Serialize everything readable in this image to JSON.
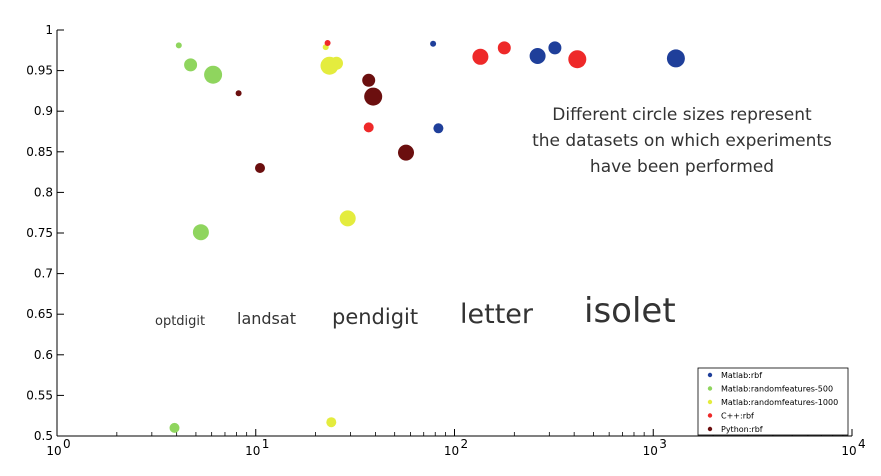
{
  "chart_data": {
    "type": "scatter",
    "xscale": "log",
    "xlim": [
      1,
      10000
    ],
    "ylim": [
      0.5,
      1.0
    ],
    "grid": false,
    "legend_position": "bottom-right",
    "x_ticks": [
      {
        "value": 1,
        "base": "10",
        "exp": "0"
      },
      {
        "value": 10,
        "base": "10",
        "exp": "1"
      },
      {
        "value": 100,
        "base": "10",
        "exp": "2"
      },
      {
        "value": 1000,
        "base": "10",
        "exp": "3"
      },
      {
        "value": 10000,
        "base": "10",
        "exp": "4"
      }
    ],
    "y_ticks": [
      {
        "value": 0.5,
        "label": "0.5"
      },
      {
        "value": 0.55,
        "label": "0.55"
      },
      {
        "value": 0.6,
        "label": "0.6"
      },
      {
        "value": 0.65,
        "label": "0.65"
      },
      {
        "value": 0.7,
        "label": "0.7"
      },
      {
        "value": 0.75,
        "label": "0.75"
      },
      {
        "value": 0.8,
        "label": "0.8"
      },
      {
        "value": 0.85,
        "label": "0.85"
      },
      {
        "value": 0.9,
        "label": "0.9"
      },
      {
        "value": 0.95,
        "label": "0.95"
      },
      {
        "value": 1.0,
        "label": "1"
      }
    ],
    "datasets": [
      "optdigit",
      "landsat",
      "pendigit",
      "letter",
      "isolet"
    ],
    "series": [
      {
        "name": "Matlab:rbf",
        "color": "#1f3f9a",
        "points": [
          {
            "x": 78,
            "y": 0.983,
            "dataset": "optdigit"
          },
          {
            "x": 83,
            "y": 0.879,
            "dataset": "landsat"
          },
          {
            "x": 320,
            "y": 0.978,
            "dataset": "pendigit"
          },
          {
            "x": 262,
            "y": 0.968,
            "dataset": "letter"
          },
          {
            "x": 1300,
            "y": 0.965,
            "dataset": "isolet"
          }
        ]
      },
      {
        "name": "Matlab:randomfeatures-500",
        "color": "#8fd55e",
        "points": [
          {
            "x": 4.1,
            "y": 0.981,
            "dataset": "optdigit"
          },
          {
            "x": 3.9,
            "y": 0.51,
            "dataset": "landsat"
          },
          {
            "x": 4.7,
            "y": 0.957,
            "dataset": "pendigit"
          },
          {
            "x": 5.3,
            "y": 0.751,
            "dataset": "letter"
          },
          {
            "x": 6.1,
            "y": 0.945,
            "dataset": "isolet"
          }
        ]
      },
      {
        "name": "Matlab:randomfeatures-1000",
        "color": "#e4ec3e",
        "points": [
          {
            "x": 22.5,
            "y": 0.979,
            "dataset": "optdigit"
          },
          {
            "x": 24,
            "y": 0.517,
            "dataset": "landsat"
          },
          {
            "x": 25.5,
            "y": 0.959,
            "dataset": "pendigit"
          },
          {
            "x": 29,
            "y": 0.768,
            "dataset": "letter"
          },
          {
            "x": 23.5,
            "y": 0.956,
            "dataset": "isolet"
          }
        ]
      },
      {
        "name": "C++:rbf",
        "color": "#ee2929",
        "points": [
          {
            "x": 23,
            "y": 0.984,
            "dataset": "optdigit"
          },
          {
            "x": 37,
            "y": 0.88,
            "dataset": "landsat"
          },
          {
            "x": 178,
            "y": 0.978,
            "dataset": "pendigit"
          },
          {
            "x": 135,
            "y": 0.967,
            "dataset": "letter"
          },
          {
            "x": 415,
            "y": 0.964,
            "dataset": "isolet"
          }
        ]
      },
      {
        "name": "Python:rbf",
        "color": "#6b0f0f",
        "points": [
          {
            "x": 8.2,
            "y": 0.922,
            "dataset": "optdigit"
          },
          {
            "x": 10.5,
            "y": 0.83,
            "dataset": "landsat"
          },
          {
            "x": 37,
            "y": 0.938,
            "dataset": "pendigit"
          },
          {
            "x": 57,
            "y": 0.849,
            "dataset": "letter"
          },
          {
            "x": 39,
            "y": 0.918,
            "dataset": "isolet"
          }
        ]
      }
    ],
    "annotation": [
      "Different circle sizes represent",
      "the datasets on which experiments",
      "have been performed"
    ],
    "size_labels": [
      "optdigit",
      "landsat",
      "pendigit",
      "letter",
      "isolet"
    ]
  }
}
